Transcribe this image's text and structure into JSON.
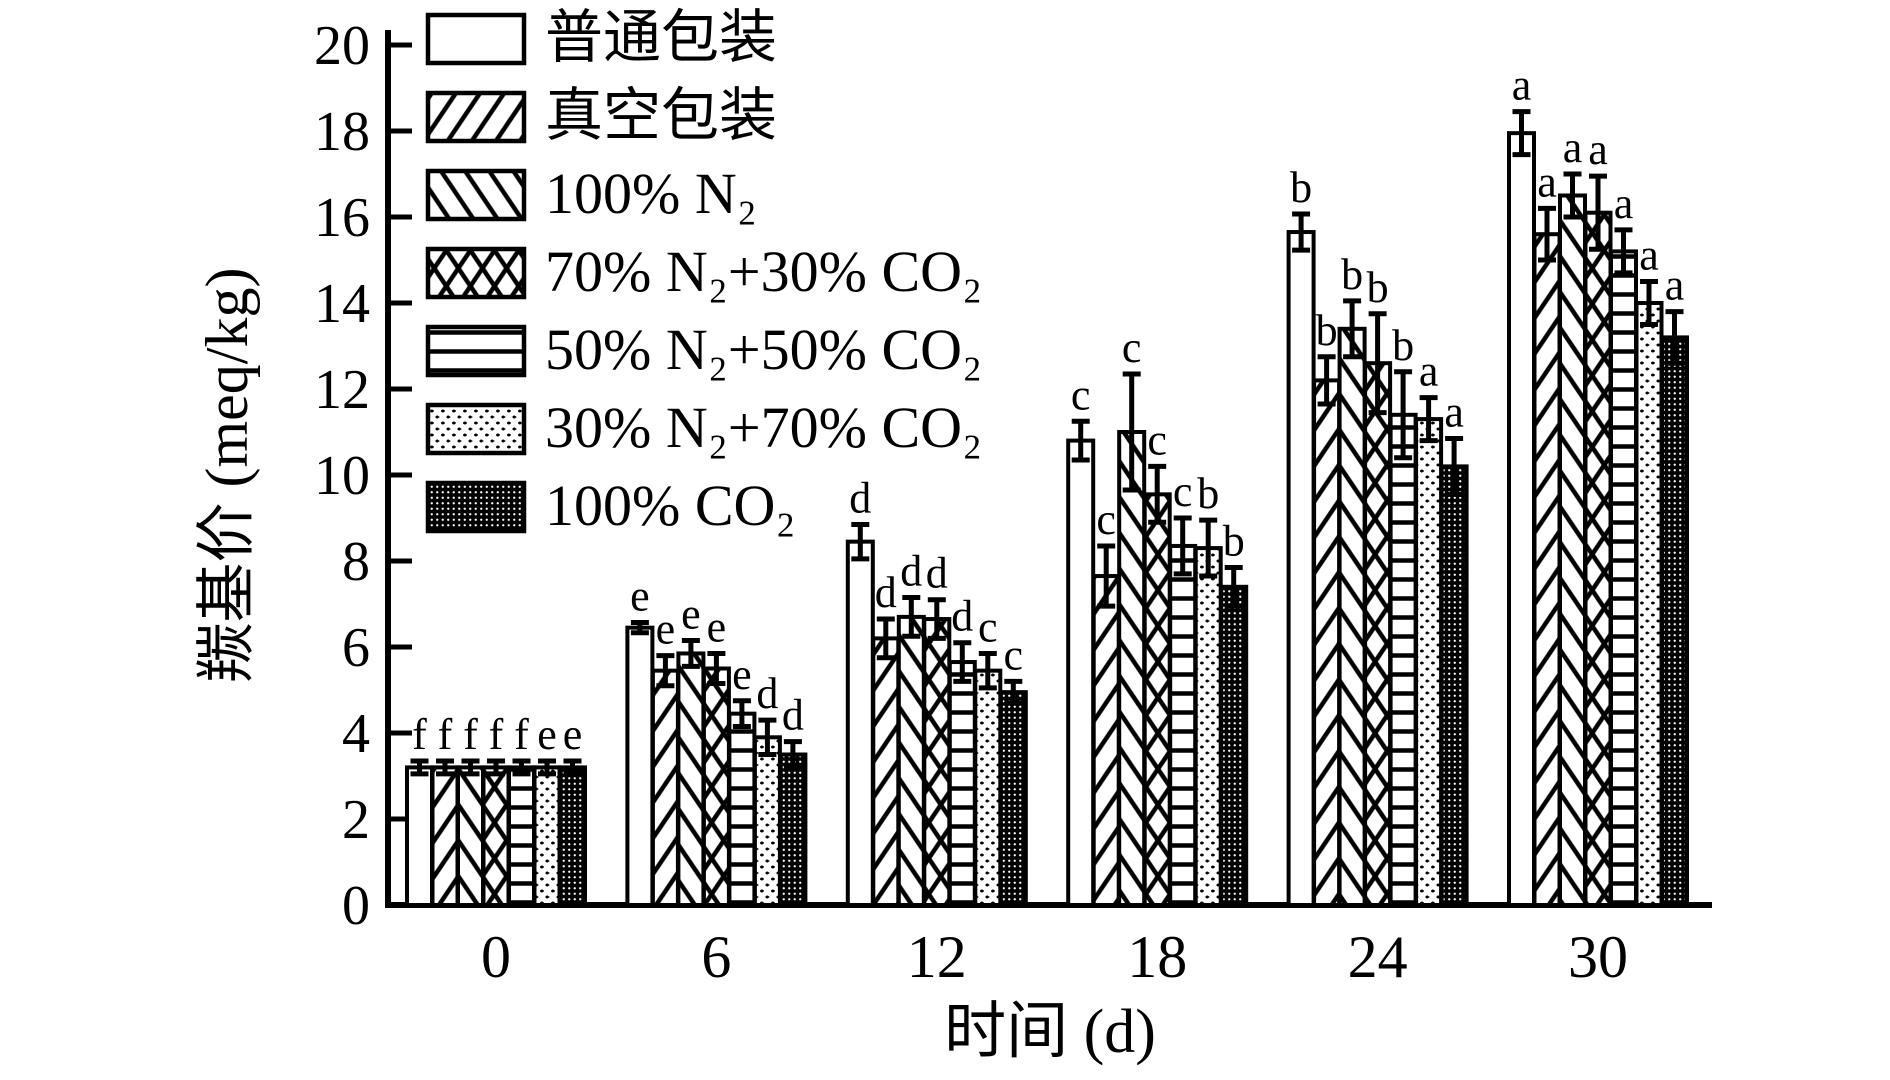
{
  "figure": {
    "background": "#ffffff",
    "ink_color": "#000000"
  },
  "chart_data": {
    "type": "bar",
    "title": "",
    "xlabel": "时间 (d)",
    "ylabel": "羰基价 (meq/kg)",
    "ylim": [
      0,
      20
    ],
    "ytick_step": 2,
    "categories": [
      "0",
      "6",
      "12",
      "18",
      "24",
      "30"
    ],
    "grid": false,
    "legend_position": "upper-left",
    "error_bars": true,
    "series": [
      {
        "name": "普通包装",
        "pattern": "plain",
        "values": [
          3.2,
          6.45,
          8.45,
          10.8,
          15.65,
          17.95
        ],
        "errors": [
          0.15,
          0.12,
          0.4,
          0.45,
          0.42,
          0.5
        ],
        "letters": [
          "f",
          "e",
          "d",
          "c",
          "b",
          "a"
        ]
      },
      {
        "name": "真空包装",
        "pattern": "hatch-fwd",
        "values": [
          3.2,
          5.45,
          6.2,
          7.65,
          12.2,
          15.6
        ],
        "errors": [
          0.15,
          0.35,
          0.45,
          0.7,
          0.55,
          0.6
        ],
        "letters": [
          "f",
          "e",
          "d",
          "c",
          "b",
          "a"
        ]
      },
      {
        "name": "100% N₂",
        "pattern": "hatch-back",
        "values": [
          3.2,
          5.85,
          6.7,
          11.0,
          13.4,
          16.5
        ],
        "errors": [
          0.15,
          0.3,
          0.45,
          1.35,
          0.65,
          0.5
        ],
        "letters": [
          "f",
          "e",
          "d",
          "c",
          "b",
          "a"
        ]
      },
      {
        "name": "70% N₂+30% CO₂",
        "pattern": "crosshatch",
        "values": [
          3.2,
          5.5,
          6.65,
          9.55,
          12.6,
          16.1
        ],
        "errors": [
          0.15,
          0.35,
          0.45,
          0.65,
          1.15,
          0.85
        ],
        "letters": [
          "f",
          "e",
          "d",
          "c",
          "b",
          "a"
        ]
      },
      {
        "name": "50% N₂+50% CO₂",
        "pattern": "horizontal",
        "values": [
          3.2,
          4.45,
          5.65,
          8.35,
          11.4,
          15.2
        ],
        "errors": [
          0.15,
          0.3,
          0.45,
          0.65,
          1.0,
          0.5
        ],
        "letters": [
          "f",
          "e",
          "d",
          "c",
          "b",
          "a"
        ]
      },
      {
        "name": "30% N₂+70% CO₂",
        "pattern": "dots-light",
        "values": [
          3.2,
          3.9,
          5.45,
          8.3,
          11.3,
          14.0
        ],
        "errors": [
          0.15,
          0.4,
          0.4,
          0.65,
          0.5,
          0.5
        ],
        "letters": [
          "e",
          "d",
          "c",
          "b",
          "a",
          "a"
        ]
      },
      {
        "name": "100% CO₂",
        "pattern": "dots-dense",
        "values": [
          3.2,
          3.5,
          4.95,
          7.4,
          10.2,
          13.2
        ],
        "errors": [
          0.15,
          0.3,
          0.25,
          0.45,
          0.65,
          0.6
        ],
        "letters": [
          "e",
          "d",
          "c",
          "b",
          "a",
          "a"
        ]
      }
    ]
  }
}
